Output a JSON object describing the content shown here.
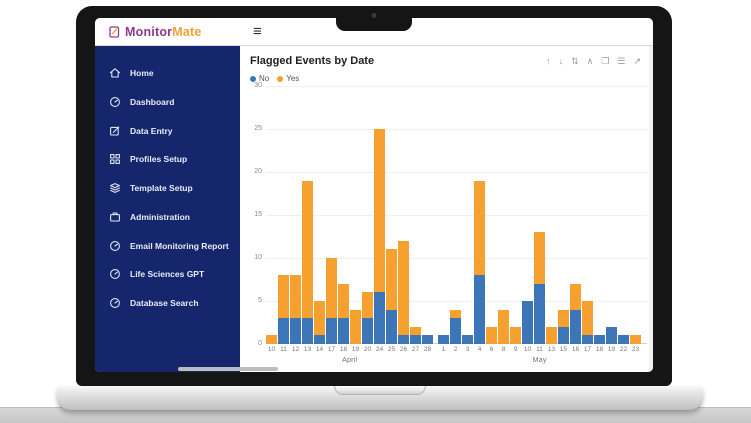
{
  "app": {
    "logo": {
      "monitor": "Monitor",
      "mate": "Mate",
      "monitor_color": "#8e3a92",
      "mate_color": "#f2a132",
      "icon": "monitormate-logo-icon"
    },
    "menu_icon": {
      "name": "hamburger-icon",
      "glyph": "≡"
    }
  },
  "sidebar": {
    "bg_color": "#16266d",
    "items": [
      {
        "label": "Home",
        "icon": "home-icon"
      },
      {
        "label": "Dashboard",
        "icon": "gauge-icon"
      },
      {
        "label": "Data Entry",
        "icon": "edit-icon"
      },
      {
        "label": "Profiles Setup",
        "icon": "grid-icon"
      },
      {
        "label": "Template Setup",
        "icon": "layers-icon"
      },
      {
        "label": "Administration",
        "icon": "briefcase-icon"
      },
      {
        "label": "Email Monitoring Report",
        "icon": "gauge-icon"
      },
      {
        "label": "Life Sciences GPT",
        "icon": "gauge-icon"
      },
      {
        "label": "Database Search",
        "icon": "gauge-icon"
      }
    ]
  },
  "chart": {
    "title": "Flagged Events by Date",
    "toolbar": [
      {
        "name": "arrow-up-icon",
        "glyph": "↑"
      },
      {
        "name": "arrow-down-icon",
        "glyph": "↓"
      },
      {
        "name": "sort-icon",
        "glyph": "⇅"
      },
      {
        "name": "collapse-icon",
        "glyph": "∧"
      },
      {
        "name": "copy-icon",
        "glyph": "❐"
      },
      {
        "name": "filter-icon",
        "glyph": "☰"
      },
      {
        "name": "expand-icon",
        "glyph": "↗"
      }
    ],
    "legend": [
      {
        "label": "No",
        "color": "#3d76b8"
      },
      {
        "label": "Yes",
        "color": "#f5a02f"
      }
    ]
  },
  "chart_data": {
    "type": "bar",
    "stacked": true,
    "title": "Flagged Events by Date",
    "ylim": [
      0,
      30
    ],
    "yticks": [
      0,
      5,
      10,
      15,
      20,
      25,
      30
    ],
    "grid": true,
    "legend_position": "top-left",
    "groups": [
      {
        "month": "April",
        "days": [
          "10",
          "11",
          "12",
          "13",
          "14",
          "17",
          "18",
          "19",
          "20",
          "24",
          "25",
          "26",
          "27",
          "28"
        ]
      },
      {
        "month": "May",
        "days": [
          "1",
          "2",
          "3",
          "4",
          "6",
          "8",
          "9",
          "10",
          "11",
          "13",
          "15",
          "16",
          "17",
          "18",
          "19",
          "22",
          "23"
        ]
      }
    ],
    "series": [
      {
        "name": "No",
        "color": "#3d76b8",
        "values": [
          0,
          3,
          3,
          3,
          1,
          3,
          3,
          0,
          3,
          6,
          4,
          1,
          1,
          1,
          1,
          3,
          1,
          8,
          0,
          0,
          0,
          5,
          7,
          0,
          2,
          4,
          1,
          1,
          2,
          1,
          0
        ]
      },
      {
        "name": "Yes",
        "color": "#f5a02f",
        "values": [
          1,
          5,
          5,
          16,
          4,
          7,
          4,
          4,
          3,
          19,
          7,
          11,
          1,
          0,
          0,
          1,
          0,
          11,
          2,
          4,
          2,
          0,
          6,
          2,
          2,
          3,
          4,
          0,
          0,
          0,
          1
        ]
      }
    ]
  }
}
